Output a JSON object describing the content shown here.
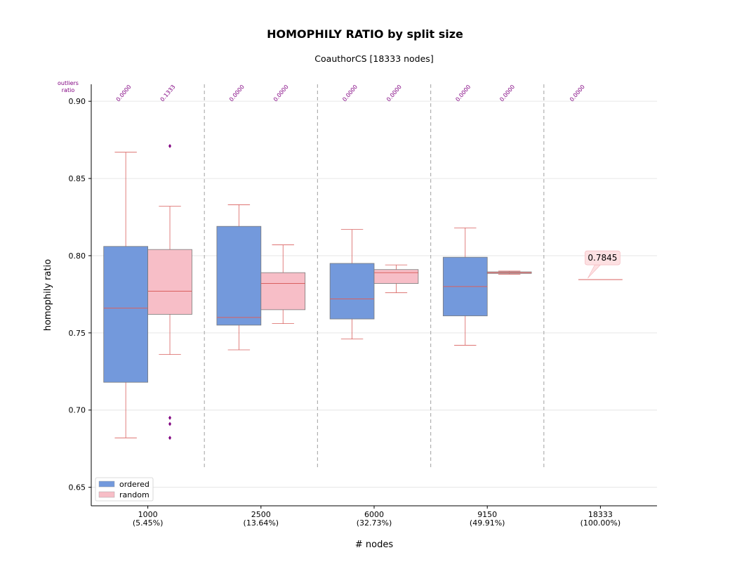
{
  "chart_data": {
    "type": "box",
    "title": "HOMOPHILY RATIO by split size",
    "subtitle": "CoauthorCS [18333 nodes]",
    "xlabel": "# nodes",
    "ylabel": "homophily ratio",
    "ylim": [
      0.638,
      0.911
    ],
    "yticks": [
      0.65,
      0.7,
      0.75,
      0.8,
      0.85,
      0.9
    ],
    "ytick_labels": [
      "0.65",
      "0.70",
      "0.75",
      "0.80",
      "0.85",
      "0.90"
    ],
    "grid": "horizontal",
    "legend_position": "lower-left",
    "outliers_ratio_header": [
      "outliers",
      "ratio"
    ],
    "colors": {
      "ordered": "#7399dc",
      "random": "#f7bec7",
      "line": "#d9605f",
      "outlier": "#800080",
      "annotation": "#fde0e2"
    },
    "groups": [
      {
        "label": "1000",
        "pct": "(5.45%)"
      },
      {
        "label": "2500",
        "pct": "(13.64%)"
      },
      {
        "label": "6000",
        "pct": "(32.73%)"
      },
      {
        "label": "9150",
        "pct": "(49.91%)"
      },
      {
        "label": "18333",
        "pct": "(100.00%)"
      }
    ],
    "series": [
      {
        "name": "ordered",
        "boxes": [
          {
            "group": 0,
            "whislo": 0.682,
            "q1": 0.718,
            "med": 0.766,
            "q3": 0.806,
            "whishi": 0.867,
            "fliers": [],
            "outliers_ratio": "0.0000"
          },
          {
            "group": 1,
            "whislo": 0.739,
            "q1": 0.755,
            "med": 0.76,
            "q3": 0.819,
            "whishi": 0.833,
            "fliers": [],
            "outliers_ratio": "0.0000"
          },
          {
            "group": 2,
            "whislo": 0.746,
            "q1": 0.759,
            "med": 0.772,
            "q3": 0.795,
            "whishi": 0.817,
            "fliers": [],
            "outliers_ratio": "0.0000"
          },
          {
            "group": 3,
            "whislo": 0.742,
            "q1": 0.761,
            "med": 0.78,
            "q3": 0.799,
            "whishi": 0.818,
            "fliers": [],
            "outliers_ratio": "0.0000"
          }
        ]
      },
      {
        "name": "random",
        "boxes": [
          {
            "group": 0,
            "whislo": 0.736,
            "q1": 0.762,
            "med": 0.777,
            "q3": 0.804,
            "whishi": 0.832,
            "fliers": [
              0.871,
              0.695,
              0.691,
              0.682
            ],
            "outliers_ratio": "0.1333"
          },
          {
            "group": 1,
            "whislo": 0.756,
            "q1": 0.765,
            "med": 0.782,
            "q3": 0.789,
            "whishi": 0.807,
            "fliers": [],
            "outliers_ratio": "0.0000"
          },
          {
            "group": 2,
            "whislo": 0.776,
            "q1": 0.782,
            "med": 0.789,
            "q3": 0.791,
            "whishi": 0.794,
            "fliers": [],
            "outliers_ratio": "0.0000"
          },
          {
            "group": 3,
            "whislo": 0.788,
            "q1": 0.7885,
            "med": 0.789,
            "q3": 0.7895,
            "whishi": 0.79,
            "fliers": [],
            "outliers_ratio": "0.0000"
          }
        ]
      }
    ],
    "full_graph": {
      "group": 4,
      "value": 0.7845,
      "label": "0.7845",
      "outliers_ratio": "0.0000"
    }
  }
}
